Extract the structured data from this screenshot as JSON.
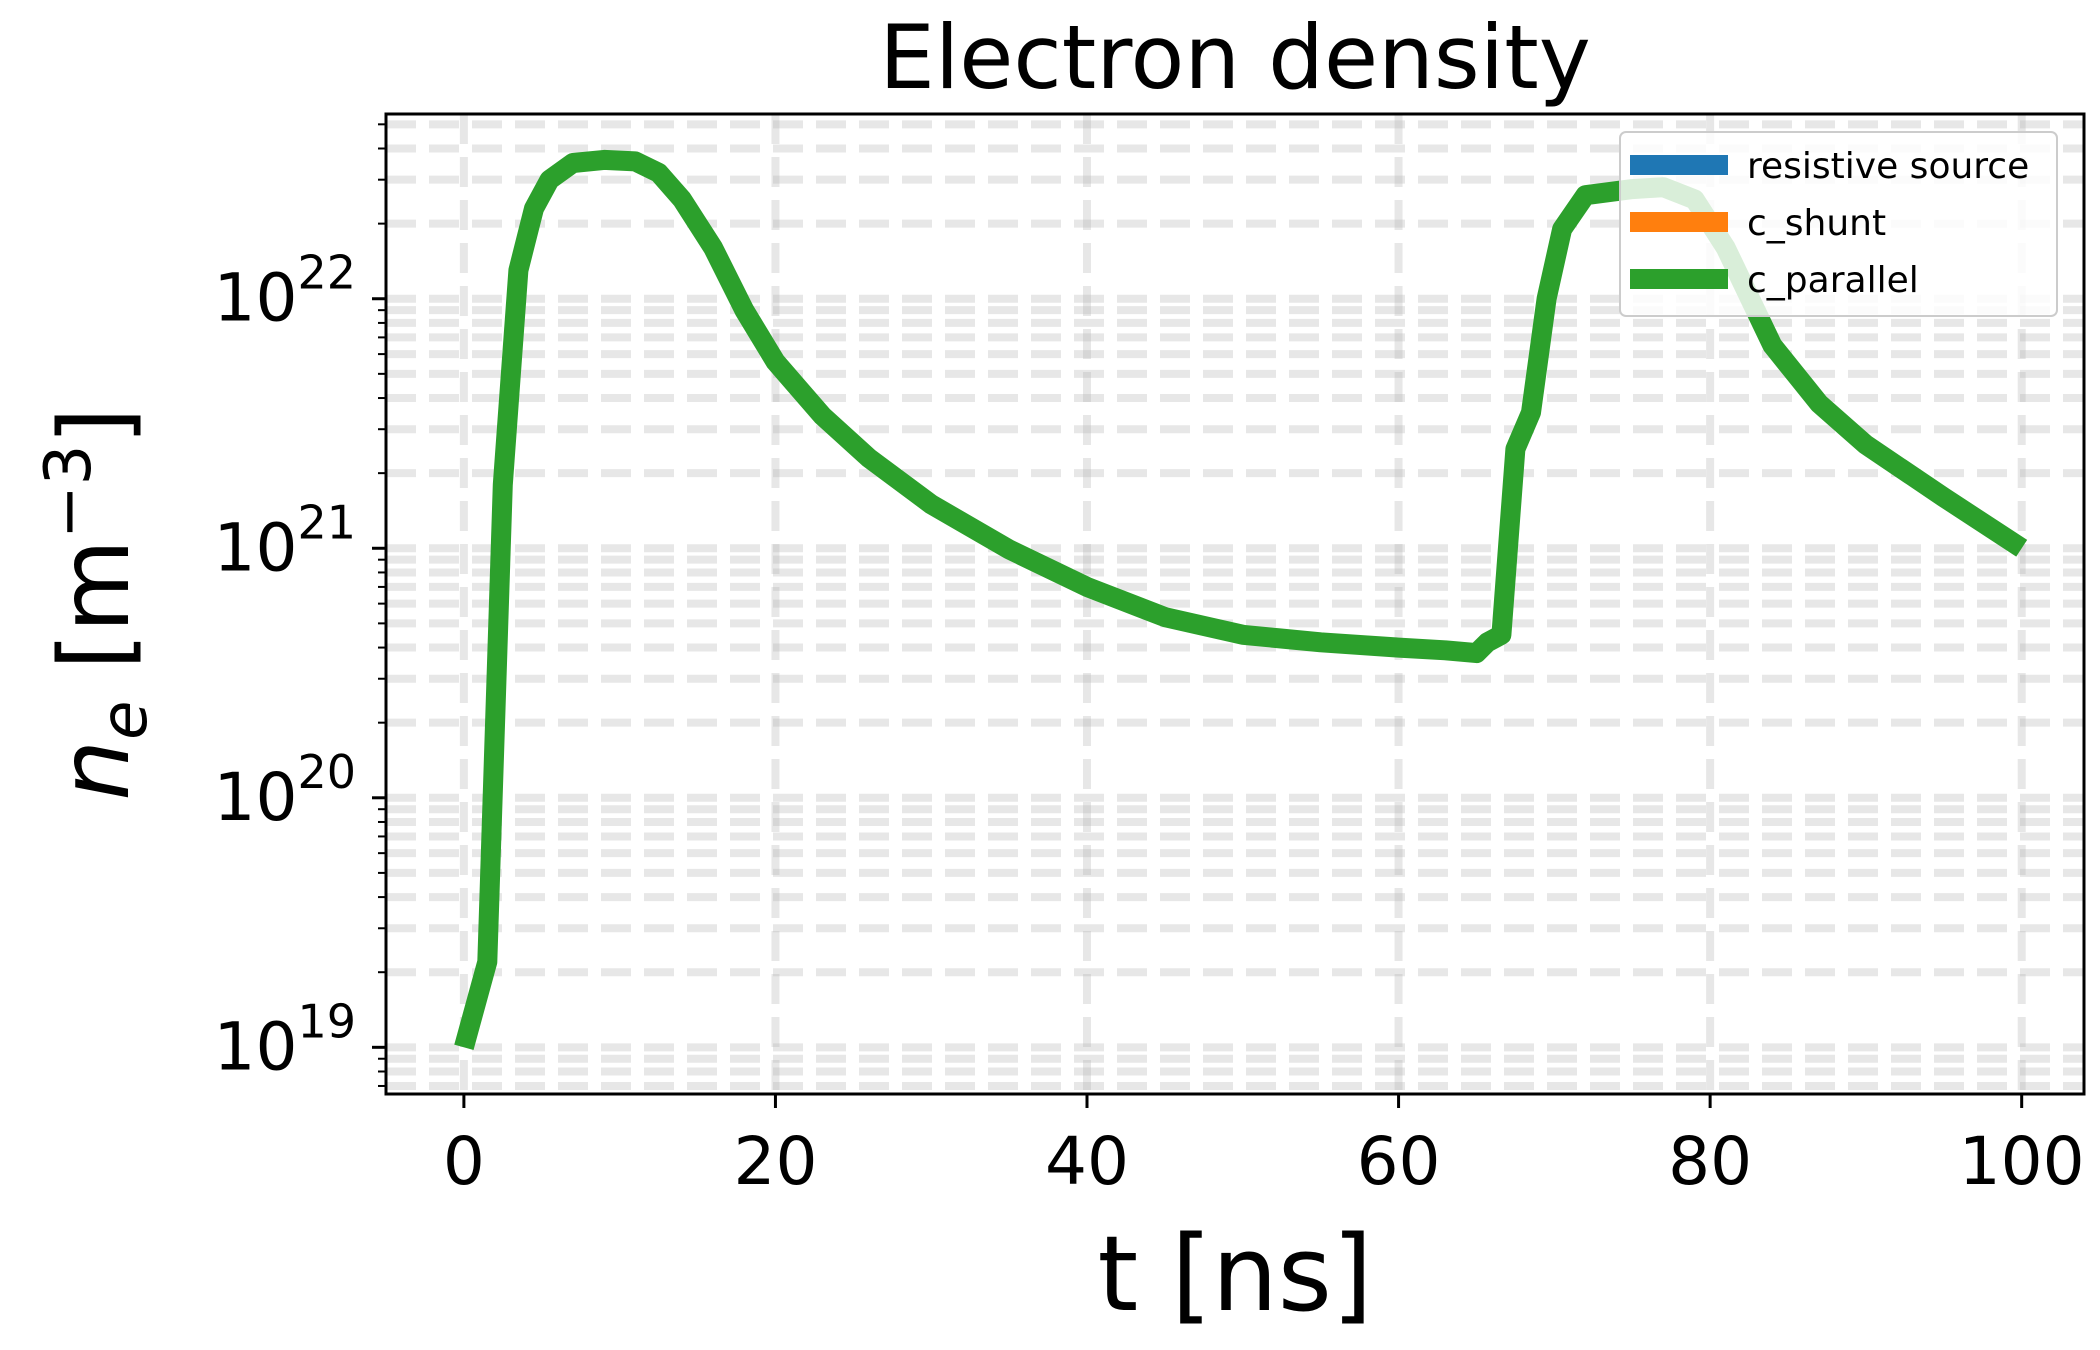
{
  "chart_data": {
    "type": "line",
    "title": "Electron density",
    "xlabel": "t [ns]",
    "ylabel": {
      "symbol": "n",
      "subscript": "e",
      "unit_open": " [m",
      "unit_exponent": "−3",
      "unit_close": "]"
    },
    "xlim": [
      -5,
      104
    ],
    "ylim": [
      6.5e+18,
      5.5e+22
    ],
    "yscale": "log",
    "grid": true,
    "legend": "top-right",
    "xticks": [
      0,
      20,
      40,
      60,
      80,
      100
    ],
    "xtick_labels": [
      "0",
      "20",
      "40",
      "60",
      "80",
      "100"
    ],
    "yticks": [
      1e+19,
      1e+20,
      1e+21,
      1e+22
    ],
    "ytick_labels": [
      {
        "base": "10",
        "exp": "19"
      },
      {
        "base": "10",
        "exp": "20"
      },
      {
        "base": "10",
        "exp": "21"
      },
      {
        "base": "10",
        "exp": "22"
      }
    ],
    "series": [
      {
        "name": "resistive source",
        "color": "#1f77b4",
        "x": [],
        "y": []
      },
      {
        "name": "c_shunt",
        "color": "#ff7f0e",
        "x": [],
        "y": []
      },
      {
        "name": "c_parallel",
        "color": "#2ca02c",
        "x": [
          0,
          1.5,
          2.5,
          3.5,
          4.5,
          5.5,
          7,
          9,
          11,
          12.5,
          14,
          16,
          18,
          20,
          23,
          26,
          30,
          35,
          40,
          45,
          50,
          55,
          60,
          63,
          65,
          65.7,
          66.6,
          67.5,
          68.5,
          69.5,
          70.5,
          72,
          75,
          77,
          79,
          81,
          84,
          87,
          90,
          95,
          100
        ],
        "y": [
          1e+19,
          2.2e+19,
          1.8e+21,
          1.3e+22,
          2.3e+22,
          3e+22,
          3.5e+22,
          3.6e+22,
          3.55e+22,
          3.2e+22,
          2.5e+22,
          1.6e+22,
          9e+21,
          5.6e+21,
          3.4e+21,
          2.3e+21,
          1.5e+21,
          9.9e+20,
          7e+20,
          5.3e+20,
          4.5e+20,
          4.2e+20,
          4e+20,
          3.9e+20,
          3.8e+20,
          4.2e+20,
          4.5e+20,
          2.5e+21,
          3.5e+21,
          1e+22,
          1.9e+22,
          2.6e+22,
          2.75e+22,
          2.8e+22,
          2.5e+22,
          1.6e+22,
          6.5e+21,
          3.8e+21,
          2.6e+21,
          1.6e+21,
          1e+21
        ]
      }
    ]
  }
}
